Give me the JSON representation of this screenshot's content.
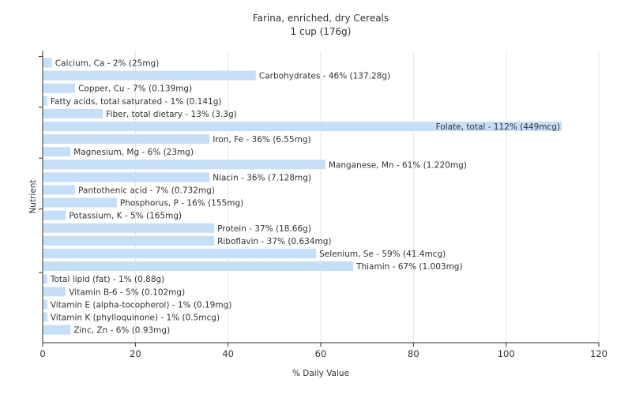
{
  "chart_data": {
    "type": "bar",
    "orientation": "horizontal",
    "title": "Farina, enriched, dry Cereals",
    "subtitle": "1 cup (176g)",
    "xlabel": "% Daily Value",
    "ylabel": "Nutrient",
    "xlim": [
      0,
      120
    ],
    "xticks": [
      0,
      20,
      40,
      60,
      80,
      100,
      120
    ],
    "grid": true,
    "bar_color": "#c6dff9",
    "categories": [
      "Calcium, Ca",
      "Carbohydrates",
      "Copper, Cu",
      "Fatty acids, total saturated",
      "Fiber, total dietary",
      "Folate, total",
      "Iron, Fe",
      "Magnesium, Mg",
      "Manganese, Mn",
      "Niacin",
      "Pantothenic acid",
      "Phosphorus, P",
      "Potassium, K",
      "Protein",
      "Riboflavin",
      "Selenium, Se",
      "Thiamin",
      "Total lipid (fat)",
      "Vitamin B-6",
      "Vitamin E (alpha-tocopherol)",
      "Vitamin K (phylloquinone)",
      "Zinc, Zn"
    ],
    "values": [
      2,
      46,
      7,
      1,
      13,
      112,
      36,
      6,
      61,
      36,
      7,
      16,
      5,
      37,
      37,
      59,
      67,
      1,
      5,
      1,
      1,
      6
    ],
    "labels": [
      "Calcium, Ca - 2% (25mg)",
      "Carbohydrates - 46% (137.28g)",
      "Copper, Cu - 7% (0.139mg)",
      "Fatty acids, total saturated - 1% (0.141g)",
      "Fiber, total dietary - 13% (3.3g)",
      "Folate, total - 112% (449mcg)",
      "Iron, Fe - 36% (6.55mg)",
      "Magnesium, Mg - 6% (23mg)",
      "Manganese, Mn - 61% (1.220mg)",
      "Niacin - 36% (7.128mg)",
      "Pantothenic acid - 7% (0.732mg)",
      "Phosphorus, P - 16% (155mg)",
      "Potassium, K - 5% (165mg)",
      "Protein - 37% (18.66g)",
      "Riboflavin - 37% (0.634mg)",
      "Selenium, Se - 59% (41.4mcg)",
      "Thiamin - 67% (1.003mg)",
      "Total lipid (fat) - 1% (0.88g)",
      "Vitamin B-6 - 5% (0.102mg)",
      "Vitamin E (alpha-tocopherol) - 1% (0.19mg)",
      "Vitamin K (phylloquinone) - 1% (0.5mcg)",
      "Zinc, Zn - 6% (0.93mg)"
    ]
  }
}
